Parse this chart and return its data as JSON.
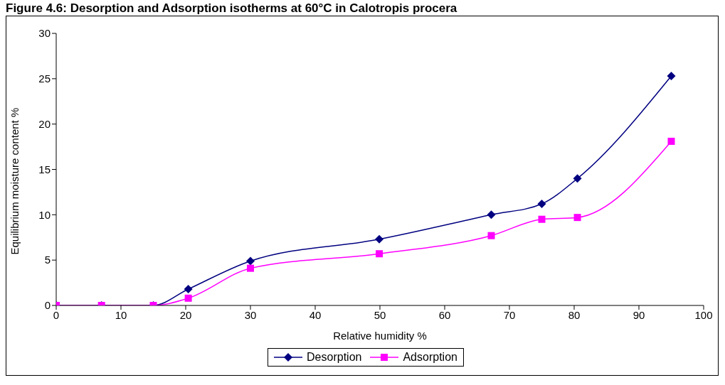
{
  "chart_data": {
    "type": "line",
    "title": "Figure 4.6: Desorption and Adsorption isotherms at 60°C in Calotropis procera",
    "xlabel": "Relative humidity %",
    "ylabel": "Equilibrium moisture content %",
    "x": [
      0,
      7,
      15,
      20.4,
      30,
      49.9,
      67.2,
      75,
      80.5,
      95
    ],
    "series": [
      {
        "name": "Desorption",
        "color": "#000080",
        "marker": "diamond",
        "values": [
          0,
          0,
          0,
          1.8,
          4.9,
          7.3,
          10.0,
          11.2,
          14.0,
          25.3
        ]
      },
      {
        "name": "Adsorption",
        "color": "#ff00ff",
        "marker": "square",
        "values": [
          0,
          0,
          0,
          0.8,
          4.1,
          5.7,
          7.7,
          9.5,
          9.7,
          18.1
        ]
      }
    ],
    "xlim": [
      0,
      100
    ],
    "xticks": [
      0,
      10,
      20,
      30,
      40,
      50,
      60,
      70,
      80,
      90,
      100
    ],
    "ylim": [
      0,
      30
    ],
    "yticks": [
      0,
      5,
      10,
      15,
      20,
      25,
      30
    ],
    "legend": "bottom"
  }
}
